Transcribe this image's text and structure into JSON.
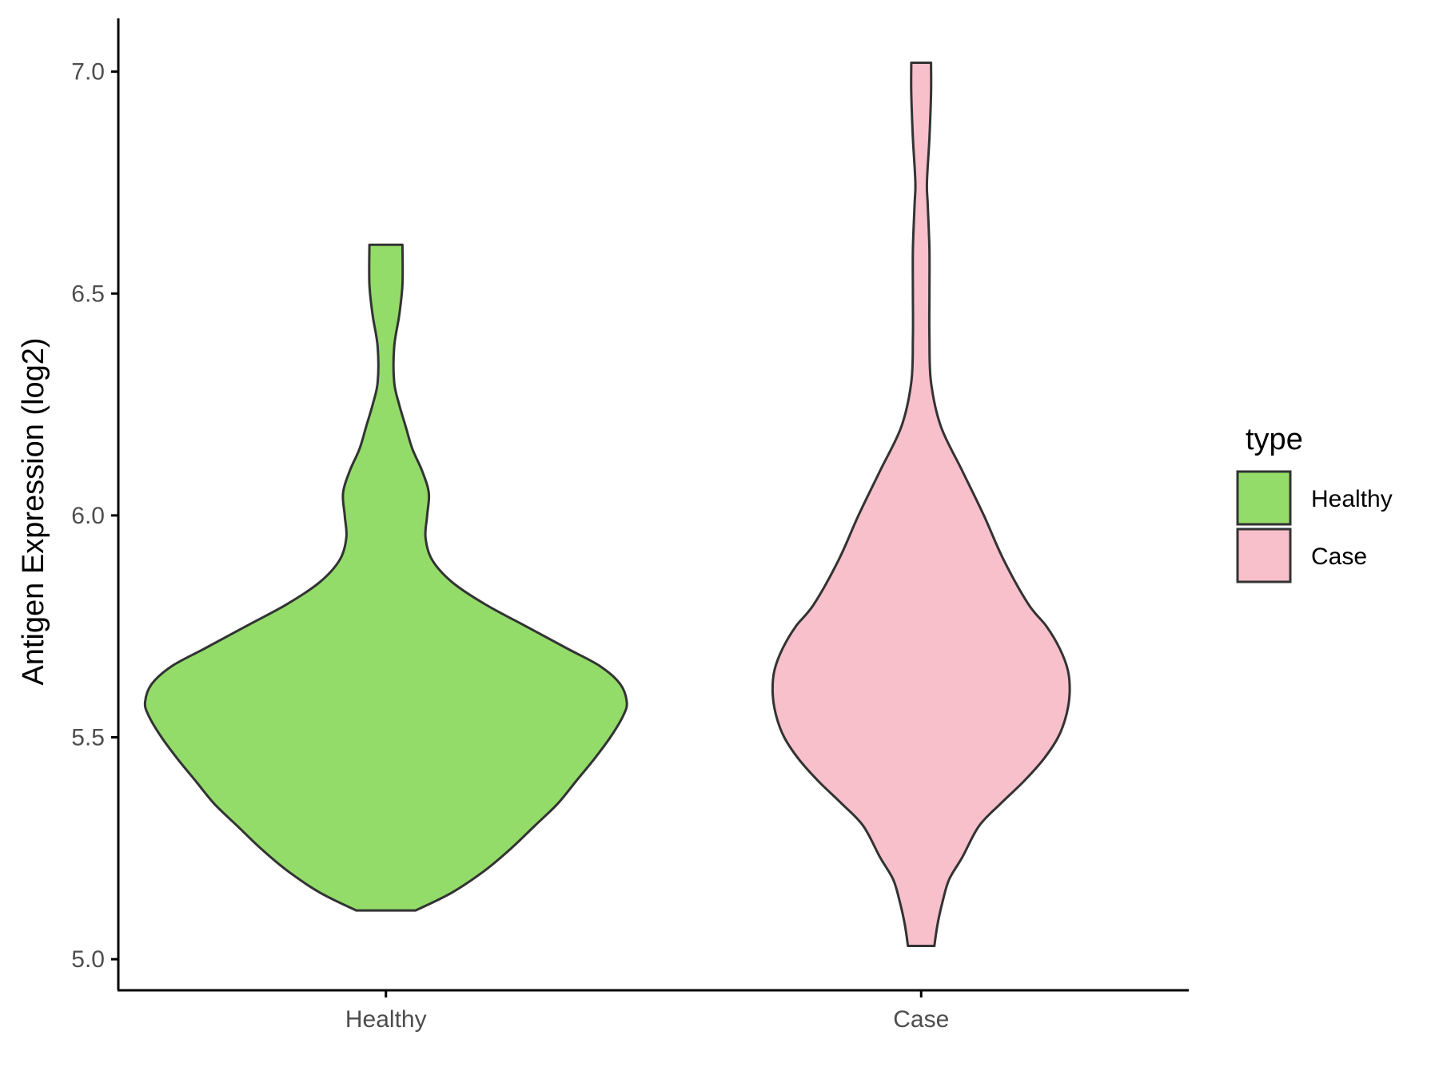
{
  "chart_data": {
    "type": "violin",
    "title": "",
    "xlabel": "",
    "ylabel": "Antigen Expression (log2)",
    "ylim": [
      4.93,
      7.12
    ],
    "yticks": [
      "5.0",
      "5.5",
      "6.0",
      "6.5",
      "7.0"
    ],
    "categories": [
      "Healthy",
      "Case"
    ],
    "grid": false,
    "legend": {
      "title": "type",
      "position": "right",
      "entries": [
        {
          "label": "Healthy",
          "color": "#93dc6a"
        },
        {
          "label": "Case",
          "color": "#f7c0cb"
        }
      ]
    },
    "series": [
      {
        "category": "Healthy",
        "color": "#93dc6a",
        "min": 5.11,
        "max": 6.61,
        "profile": [
          [
            5.11,
            0.18
          ],
          [
            5.15,
            0.4
          ],
          [
            5.2,
            0.6
          ],
          [
            5.25,
            0.76
          ],
          [
            5.3,
            0.9
          ],
          [
            5.35,
            1.04
          ],
          [
            5.4,
            1.15
          ],
          [
            5.45,
            1.26
          ],
          [
            5.5,
            1.36
          ],
          [
            5.55,
            1.44
          ],
          [
            5.58,
            1.46
          ],
          [
            5.62,
            1.42
          ],
          [
            5.66,
            1.3
          ],
          [
            5.7,
            1.1
          ],
          [
            5.75,
            0.85
          ],
          [
            5.8,
            0.6
          ],
          [
            5.85,
            0.4
          ],
          [
            5.9,
            0.28
          ],
          [
            5.95,
            0.24
          ],
          [
            6.0,
            0.25
          ],
          [
            6.05,
            0.26
          ],
          [
            6.1,
            0.22
          ],
          [
            6.15,
            0.16
          ],
          [
            6.2,
            0.12
          ],
          [
            6.25,
            0.08
          ],
          [
            6.3,
            0.05
          ],
          [
            6.38,
            0.05
          ],
          [
            6.45,
            0.08
          ],
          [
            6.52,
            0.1
          ],
          [
            6.61,
            0.1
          ]
        ]
      },
      {
        "category": "Case",
        "color": "#f7c0cb",
        "min": 5.03,
        "max": 7.02,
        "profile": [
          [
            5.03,
            0.08
          ],
          [
            5.08,
            0.1
          ],
          [
            5.13,
            0.13
          ],
          [
            5.18,
            0.17
          ],
          [
            5.23,
            0.25
          ],
          [
            5.3,
            0.35
          ],
          [
            5.35,
            0.48
          ],
          [
            5.4,
            0.62
          ],
          [
            5.45,
            0.74
          ],
          [
            5.5,
            0.83
          ],
          [
            5.55,
            0.88
          ],
          [
            5.6,
            0.9
          ],
          [
            5.65,
            0.89
          ],
          [
            5.7,
            0.84
          ],
          [
            5.75,
            0.76
          ],
          [
            5.8,
            0.65
          ],
          [
            5.9,
            0.5
          ],
          [
            6.0,
            0.38
          ],
          [
            6.1,
            0.25
          ],
          [
            6.2,
            0.12
          ],
          [
            6.3,
            0.06
          ],
          [
            6.4,
            0.05
          ],
          [
            6.5,
            0.05
          ],
          [
            6.6,
            0.05
          ],
          [
            6.7,
            0.04
          ],
          [
            6.75,
            0.035
          ],
          [
            6.85,
            0.05
          ],
          [
            6.95,
            0.06
          ],
          [
            7.02,
            0.06
          ]
        ]
      }
    ]
  }
}
